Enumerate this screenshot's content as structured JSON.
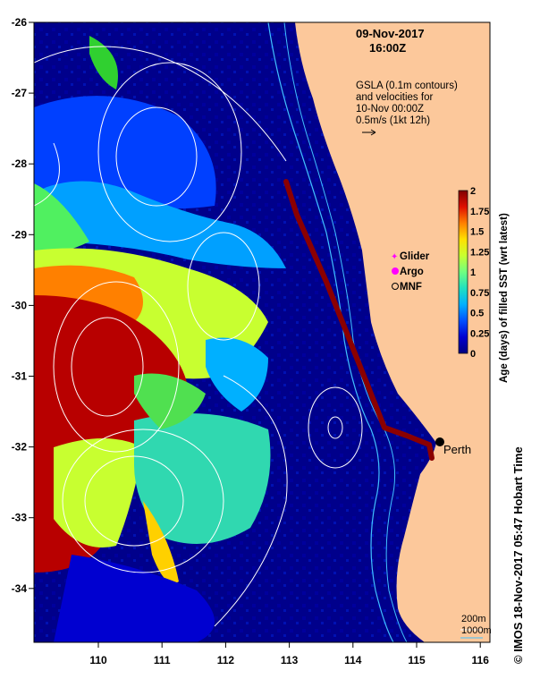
{
  "title": {
    "date": "09-Nov-2017",
    "time": "16:00Z"
  },
  "annotation": {
    "line1": "GSLA (0.1m contours)",
    "line2": "and velocities for",
    "line3": "10-Nov 00:00Z",
    "line4": "0.5m/s (1kt 12h)"
  },
  "legend": {
    "glider": "Glider",
    "argo": "Argo",
    "mnf": "MNF"
  },
  "colorbar": {
    "label": "Age (days) of filled SST (wrt latest)",
    "ticks": [
      "2",
      "1.75",
      "1.5",
      "1.25",
      "1",
      "0.75",
      "0.5",
      "0.25",
      "0"
    ],
    "colors": [
      "#000080",
      "#0000d0",
      "#0050ff",
      "#00b0ff",
      "#20e0c0",
      "#70ff80",
      "#c8ff30",
      "#ffe000",
      "#ff8000",
      "#e01000",
      "#800000"
    ]
  },
  "city": {
    "name": "Perth"
  },
  "depth_legend": {
    "line1": "200m",
    "line2": "1000m"
  },
  "credit": "© IMOS 18-Nov-2017 05:47 Hobart Time",
  "axes": {
    "x_ticks": [
      "110",
      "111",
      "112",
      "113",
      "114",
      "115",
      "116"
    ],
    "y_ticks": [
      "-26",
      "-27",
      "-28",
      "-29",
      "-30",
      "-31",
      "-32",
      "-33",
      "-34"
    ]
  },
  "colors": {
    "land": "#fcc89b",
    "ocean_deep": "#00008b",
    "track": "#8b0000",
    "contour": "#ffffff",
    "isobath": "#40c0ff"
  }
}
